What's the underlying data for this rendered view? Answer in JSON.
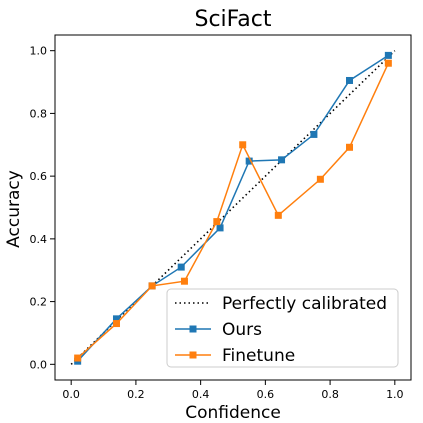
{
  "chart_data": {
    "type": "line",
    "title": "SciFact",
    "xlabel": "Confidence",
    "ylabel": "Accuracy",
    "xlim": [
      -0.05,
      1.05
    ],
    "ylim": [
      -0.05,
      1.05
    ],
    "xticks": [
      0.0,
      0.2,
      0.4,
      0.6,
      0.8,
      1.0
    ],
    "xtick_labels": [
      "0.0",
      "0.2",
      "0.4",
      "0.6",
      "0.8",
      "1.0"
    ],
    "yticks": [
      0.0,
      0.2,
      0.4,
      0.6,
      0.8,
      1.0
    ],
    "ytick_labels": [
      "0.0",
      "0.2",
      "0.4",
      "0.6",
      "0.8",
      "1.0"
    ],
    "grid": false,
    "legend_position": "bottom-right",
    "series": [
      {
        "name": "Perfectly calibrated",
        "color": "#000000",
        "style": "dotted",
        "marker": "none",
        "x": [
          0.0,
          1.0
        ],
        "y": [
          0.0,
          1.0
        ]
      },
      {
        "name": "Ours",
        "color": "#1f77b4",
        "style": "solid",
        "marker": "square",
        "x": [
          0.02,
          0.14,
          0.25,
          0.34,
          0.46,
          0.55,
          0.65,
          0.75,
          0.86,
          0.98
        ],
        "y": [
          0.01,
          0.145,
          0.25,
          0.31,
          0.435,
          0.648,
          0.652,
          0.733,
          0.905,
          0.985
        ]
      },
      {
        "name": "Finetune",
        "color": "#ff7f0e",
        "style": "solid",
        "marker": "square",
        "x": [
          0.02,
          0.14,
          0.25,
          0.35,
          0.45,
          0.53,
          0.64,
          0.77,
          0.86,
          0.98
        ],
        "y": [
          0.02,
          0.13,
          0.25,
          0.265,
          0.455,
          0.7,
          0.475,
          0.59,
          0.692,
          0.96
        ]
      }
    ]
  }
}
